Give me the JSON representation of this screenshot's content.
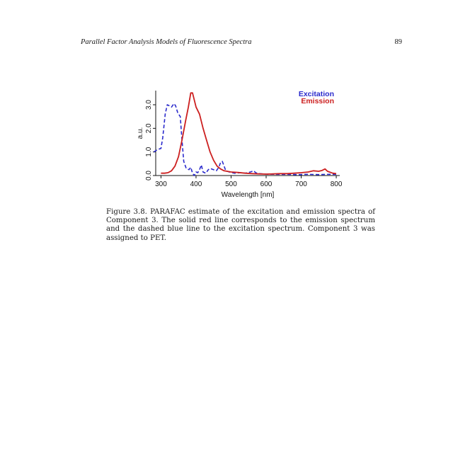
{
  "header": {
    "title": "Parallel Factor Analysis Models of Fluorescence Spectra",
    "page_number": "89"
  },
  "caption": "Figure 3.8.  PARAFAC estimate of the excitation and emission spectra of Component 3.  The solid red line corresponds to the emission spectrum and the dashed blue line to the excitation spectrum.  Component 3 was assigned to PET.",
  "chart_data": {
    "type": "line",
    "xlabel": "Wavelength [nm]",
    "ylabel": "a.u.",
    "xlim": [
      285,
      810
    ],
    "ylim": [
      0,
      3.6
    ],
    "xticks": [
      300,
      400,
      500,
      600,
      700,
      800
    ],
    "xtick_labels": [
      "300",
      "400",
      "500",
      "600",
      "700",
      "800"
    ],
    "yticks": [
      0,
      1,
      2,
      3
    ],
    "ytick_labels": [
      "0.0",
      "1.0",
      "2.0",
      "3.0"
    ],
    "legend_position": "top-right",
    "series": [
      {
        "name": "Excitation",
        "color": "#2a2acc",
        "style": "dashed",
        "points": [
          [
            280,
            1.0
          ],
          [
            290,
            1.1
          ],
          [
            300,
            1.15
          ],
          [
            305,
            1.6
          ],
          [
            312,
            2.6
          ],
          [
            318,
            3.0
          ],
          [
            325,
            2.95
          ],
          [
            330,
            2.9
          ],
          [
            337,
            3.05
          ],
          [
            342,
            2.95
          ],
          [
            348,
            2.65
          ],
          [
            355,
            2.5
          ],
          [
            360,
            1.5
          ],
          [
            365,
            0.6
          ],
          [
            372,
            0.3
          ],
          [
            380,
            0.25
          ],
          [
            385,
            0.35
          ],
          [
            390,
            0.1
          ],
          [
            395,
            0.0
          ],
          [
            400,
            0.15
          ],
          [
            405,
            0.12
          ],
          [
            410,
            0.25
          ],
          [
            415,
            0.45
          ],
          [
            420,
            0.15
          ],
          [
            428,
            0.1
          ],
          [
            435,
            0.25
          ],
          [
            440,
            0.3
          ],
          [
            450,
            0.25
          ],
          [
            458,
            0.2
          ],
          [
            465,
            0.35
          ],
          [
            470,
            0.55
          ],
          [
            475,
            0.6
          ],
          [
            480,
            0.4
          ],
          [
            485,
            0.2
          ],
          [
            495,
            0.15
          ],
          [
            510,
            0.1
          ],
          [
            525,
            0.12
          ],
          [
            540,
            0.1
          ],
          [
            555,
            0.15
          ],
          [
            565,
            0.2
          ],
          [
            570,
            0.12
          ],
          [
            580,
            0.08
          ],
          [
            600,
            0.06
          ],
          [
            630,
            0.05
          ],
          [
            660,
            0.05
          ],
          [
            690,
            0.04
          ],
          [
            720,
            0.05
          ],
          [
            750,
            0.04
          ],
          [
            780,
            0.05
          ],
          [
            800,
            0.05
          ]
        ]
      },
      {
        "name": "Emission",
        "color": "#cc1f1f",
        "style": "solid",
        "points": [
          [
            300,
            0.1
          ],
          [
            310,
            0.1
          ],
          [
            320,
            0.12
          ],
          [
            330,
            0.2
          ],
          [
            340,
            0.4
          ],
          [
            350,
            0.8
          ],
          [
            360,
            1.5
          ],
          [
            370,
            2.3
          ],
          [
            378,
            2.9
          ],
          [
            385,
            3.5
          ],
          [
            390,
            3.5
          ],
          [
            395,
            3.2
          ],
          [
            400,
            2.9
          ],
          [
            410,
            2.6
          ],
          [
            420,
            2.0
          ],
          [
            430,
            1.5
          ],
          [
            440,
            1.0
          ],
          [
            450,
            0.65
          ],
          [
            460,
            0.4
          ],
          [
            470,
            0.28
          ],
          [
            480,
            0.2
          ],
          [
            500,
            0.15
          ],
          [
            520,
            0.13
          ],
          [
            540,
            0.1
          ],
          [
            560,
            0.08
          ],
          [
            580,
            0.07
          ],
          [
            600,
            0.06
          ],
          [
            620,
            0.07
          ],
          [
            640,
            0.08
          ],
          [
            660,
            0.08
          ],
          [
            680,
            0.1
          ],
          [
            700,
            0.12
          ],
          [
            720,
            0.15
          ],
          [
            735,
            0.2
          ],
          [
            750,
            0.18
          ],
          [
            760,
            0.22
          ],
          [
            768,
            0.28
          ],
          [
            775,
            0.18
          ],
          [
            790,
            0.1
          ],
          [
            800,
            0.08
          ]
        ]
      }
    ]
  }
}
